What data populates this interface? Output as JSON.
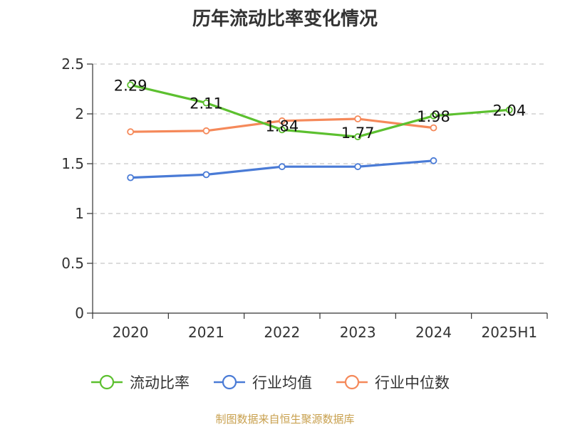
{
  "title": "历年流动比率变化情况",
  "source": "制图数据来自恒生聚源数据库",
  "chart_data": {
    "type": "line",
    "title": "历年流动比率变化情况",
    "categories": [
      "2020",
      "2021",
      "2022",
      "2023",
      "2024",
      "2025H1"
    ],
    "ylim": [
      0,
      2.5
    ],
    "yticks": [
      "0",
      "0.5",
      "1",
      "1.5",
      "2",
      "2.5"
    ],
    "grid": true,
    "legend_position": "bottom",
    "series": [
      {
        "name": "流动比率",
        "color": "#5cc02f",
        "values": [
          2.29,
          2.11,
          1.84,
          1.77,
          1.98,
          2.04
        ],
        "labels": [
          "2.29",
          "2.11",
          "1.84",
          "1.77",
          "1.98",
          "2.04"
        ]
      },
      {
        "name": "行业均值",
        "color": "#4a7bd6",
        "values": [
          1.36,
          1.39,
          1.47,
          1.47,
          1.53,
          null
        ]
      },
      {
        "name": "行业中位数",
        "color": "#f5895a",
        "values": [
          1.82,
          1.83,
          1.93,
          1.95,
          1.86,
          null
        ]
      }
    ]
  }
}
